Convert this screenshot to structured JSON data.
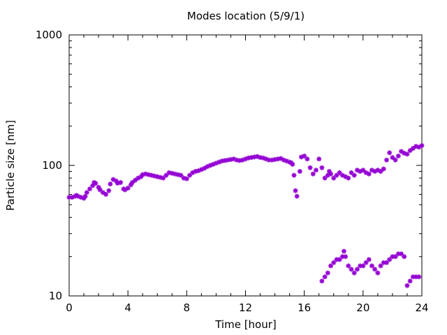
{
  "chart_data": {
    "type": "scatter",
    "title": "Modes location (5/9/1)",
    "xlabel": "Time [hour]",
    "ylabel": "Particle size [nm]",
    "xlim": [
      0,
      24
    ],
    "ylim": [
      10,
      1000
    ],
    "yscale": "log",
    "xticks": [
      0,
      4,
      8,
      12,
      16,
      20,
      24
    ],
    "yticks": [
      10,
      100,
      1000
    ],
    "xtick_labels": [
      "0",
      "4",
      "8",
      "12",
      "16",
      "20",
      "24"
    ],
    "ytick_labels": [
      "10",
      "100",
      "1000"
    ],
    "grid": false,
    "marker": "star",
    "color": "#9400d3",
    "series": [
      {
        "x": [
          0.0,
          0.2,
          0.4,
          0.5,
          0.6,
          0.8,
          1.0,
          1.1,
          1.2,
          1.4,
          1.6,
          1.7,
          1.8,
          2.0,
          2.1,
          2.3,
          2.5,
          2.7,
          2.8,
          3.0,
          3.2,
          3.3,
          3.5,
          3.7,
          3.8,
          4.0,
          4.2,
          4.3,
          4.5,
          4.7,
          4.9,
          5.0,
          5.2,
          5.4,
          5.6,
          5.8,
          6.0,
          6.2,
          6.4,
          6.6,
          6.8,
          7.0,
          7.2,
          7.4,
          7.6,
          7.8,
          8.0,
          8.2,
          8.4,
          8.6,
          8.8,
          9.0,
          9.2,
          9.4,
          9.6,
          9.8,
          10.0,
          10.2,
          10.4,
          10.6,
          10.8,
          11.0,
          11.2,
          11.4,
          11.6,
          11.8,
          12.0,
          12.2,
          12.4,
          12.6,
          12.8,
          13.0,
          13.2,
          13.4,
          13.6,
          13.8,
          14.0,
          14.2,
          14.4,
          14.6,
          14.8,
          15.0,
          15.1,
          15.2,
          15.3,
          15.4,
          15.5,
          15.7,
          15.8,
          16.0,
          16.2,
          16.4,
          16.6,
          16.8,
          17.0,
          17.2,
          17.4,
          17.6,
          17.7,
          17.8,
          18.0,
          18.2,
          18.4,
          18.6,
          18.8,
          19.0,
          19.2,
          19.4,
          19.6,
          19.8,
          20.0,
          20.2,
          20.4,
          20.6,
          20.8,
          21.0,
          21.2,
          21.4,
          21.6,
          21.8,
          22.0,
          22.2,
          22.4,
          22.6,
          22.8,
          23.0,
          23.2,
          23.4,
          23.6,
          23.8,
          24.0
        ],
        "y": [
          57,
          57,
          58,
          59,
          58,
          57,
          56,
          58,
          62,
          66,
          70,
          74,
          73,
          68,
          65,
          62,
          60,
          64,
          72,
          78,
          76,
          73,
          74,
          66,
          65,
          67,
          71,
          74,
          77,
          80,
          82,
          85,
          86,
          85,
          84,
          83,
          82,
          81,
          80,
          84,
          88,
          87,
          86,
          85,
          84,
          80,
          79,
          84,
          88,
          90,
          91,
          93,
          95,
          98,
          100,
          102,
          104,
          106,
          108,
          109,
          110,
          111,
          112,
          110,
          109,
          110,
          112,
          114,
          115,
          116,
          117,
          115,
          114,
          112,
          110,
          110,
          111,
          112,
          113,
          110,
          108,
          106,
          105,
          102,
          84,
          64,
          58,
          90,
          116,
          118,
          112,
          96,
          86,
          92,
          112,
          96,
          80,
          84,
          90,
          86,
          80,
          84,
          88,
          84,
          82,
          80,
          88,
          84,
          92,
          90,
          92,
          88,
          86,
          92,
          90,
          92,
          90,
          94,
          110,
          125,
          115,
          110,
          118,
          128,
          124,
          122,
          130,
          135,
          140,
          138,
          142
        ],
        "name": ""
      },
      {
        "x": [
          17.2,
          17.4,
          17.6,
          17.8,
          18.0,
          18.2,
          18.4,
          18.6,
          18.7,
          18.8,
          19.0,
          19.2,
          19.4,
          19.6,
          19.8,
          20.0,
          20.2,
          20.4,
          20.6,
          20.8,
          21.0,
          21.2,
          21.4,
          21.6,
          21.8,
          22.0,
          22.2,
          22.4,
          22.6,
          22.8,
          23.0,
          23.2,
          23.4,
          23.6,
          23.8
        ],
        "y": [
          13,
          14,
          15,
          17,
          18,
          19,
          19,
          20,
          22,
          20,
          17,
          16,
          15,
          16,
          17,
          17,
          18,
          19,
          17,
          16,
          15,
          17,
          18,
          18,
          19,
          20,
          20,
          21,
          21,
          20,
          12,
          13,
          14,
          14,
          14
        ],
        "name": ""
      }
    ]
  }
}
